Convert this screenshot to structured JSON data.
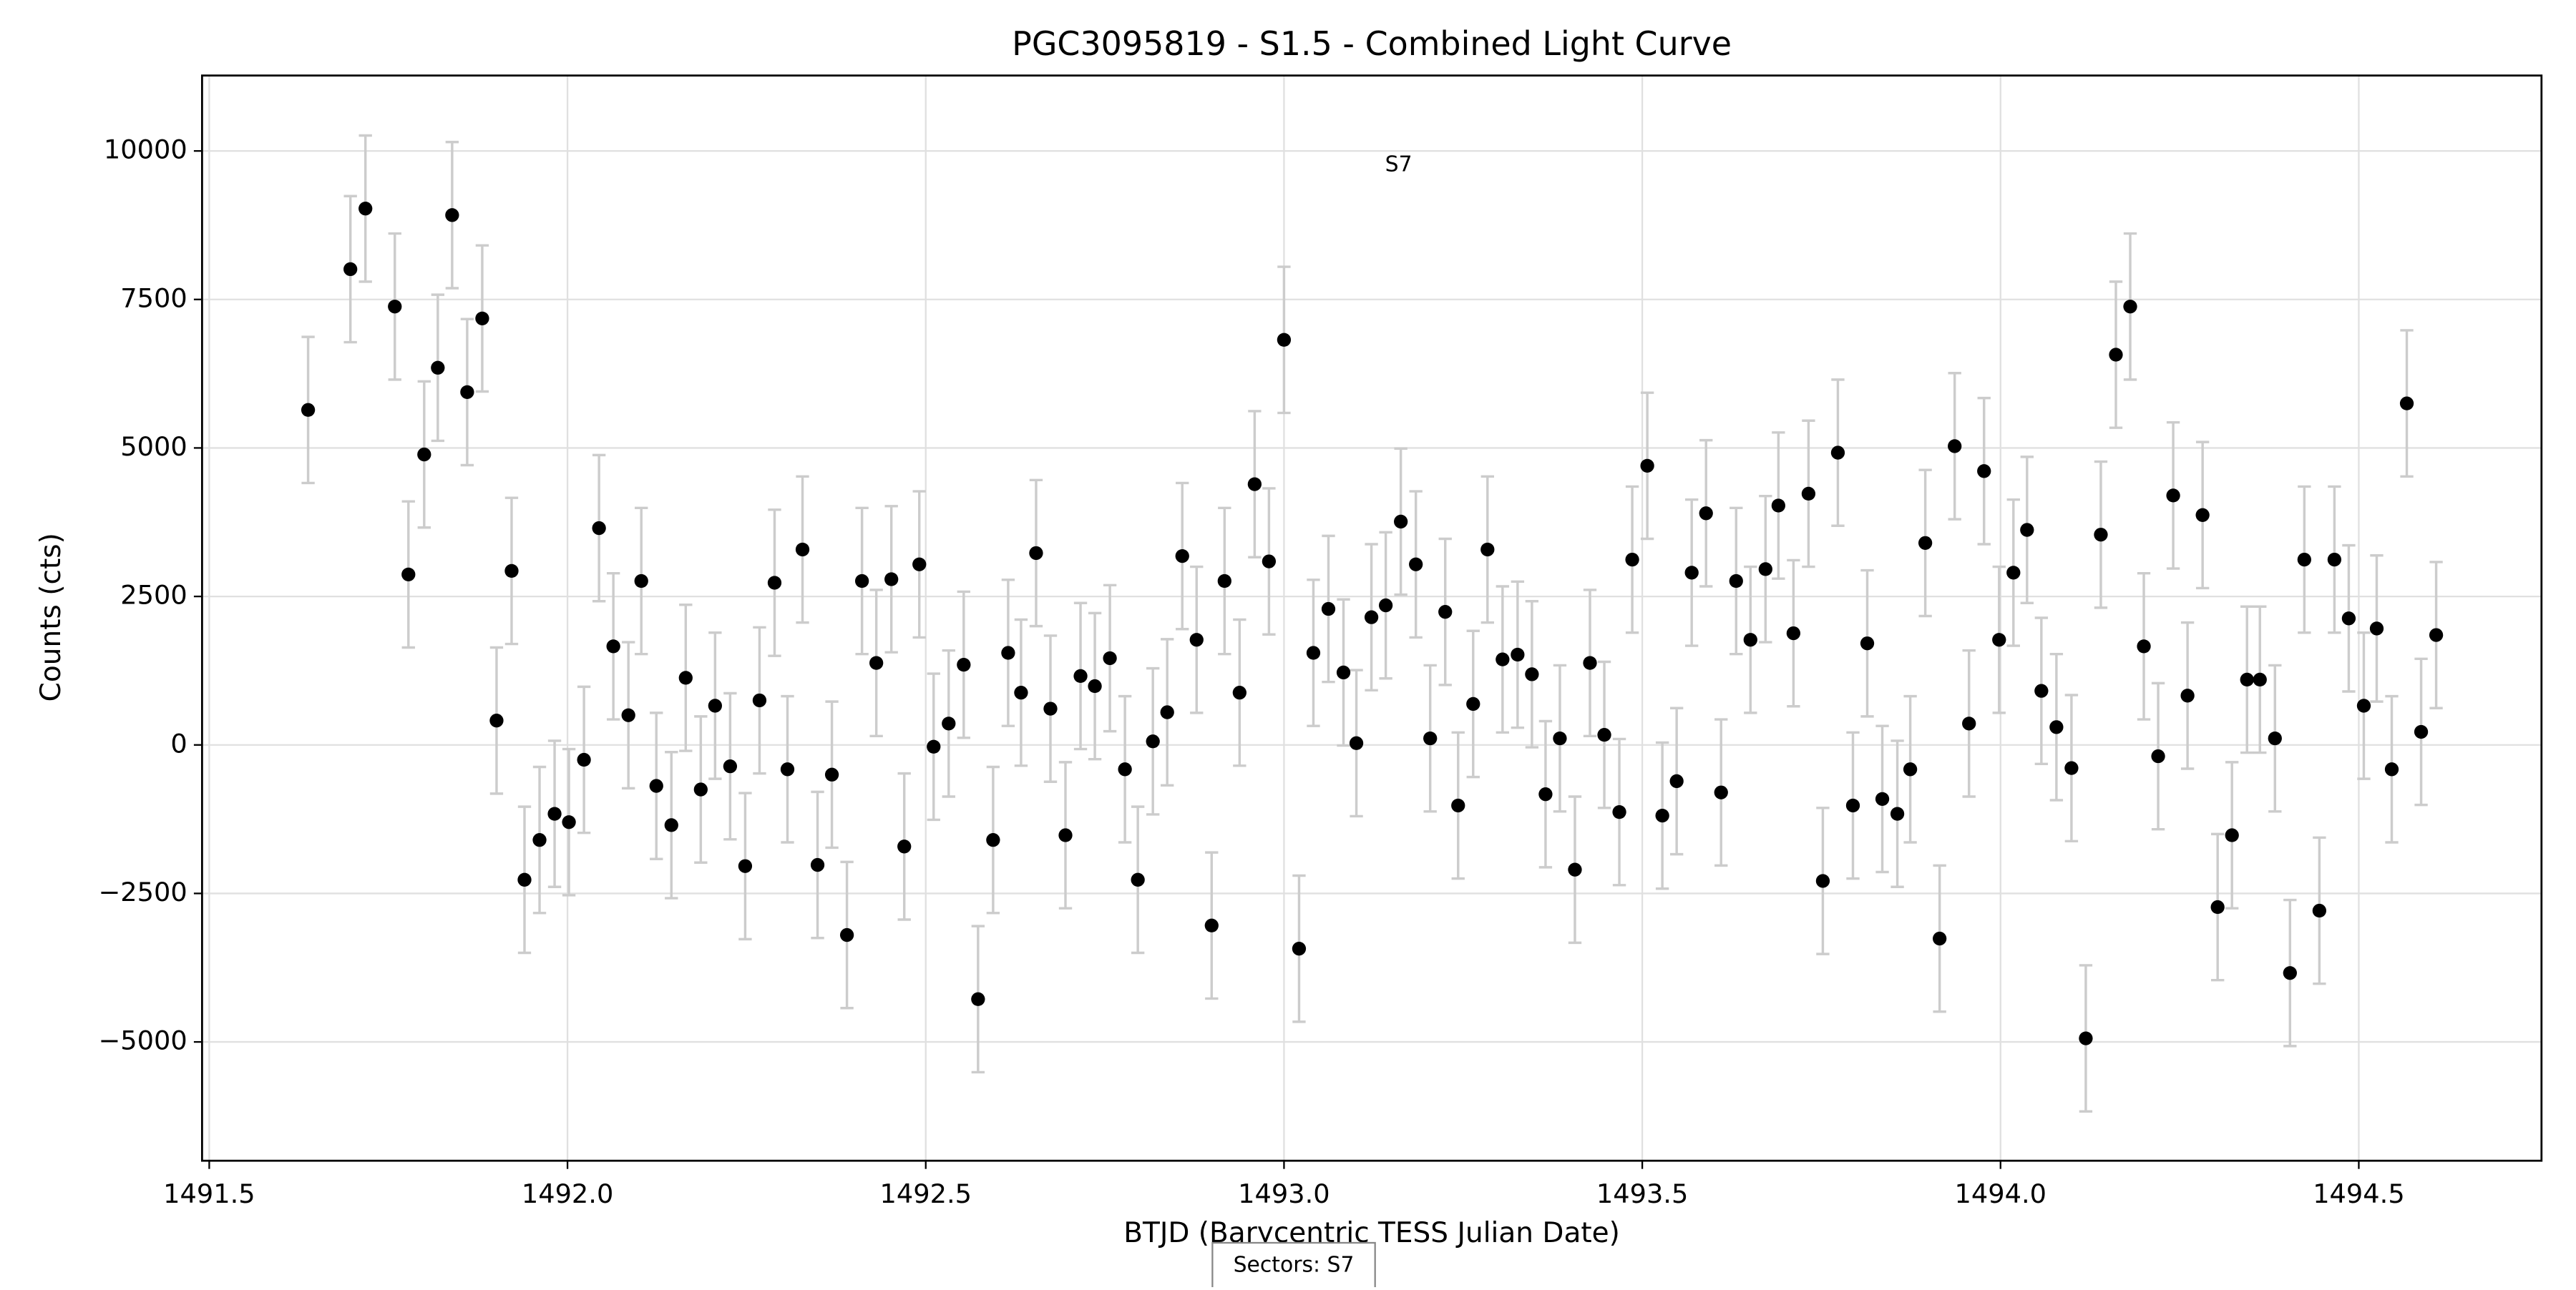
{
  "chart_data": {
    "type": "errorbar_scatter",
    "title": "PGC3095819 - S1.5 - Combined Light Curve",
    "xlabel": "BTJD (Barycentric TESS Julian Date)",
    "ylabel": "Counts (cts)",
    "annotation": {
      "text": "S7",
      "x": 1493.16,
      "y": 9760
    },
    "sectors_note": "Sectors: S7",
    "grid": true,
    "xlim": [
      1491.49,
      1494.755
    ],
    "ylim": [
      -7000,
      11270
    ],
    "xticks": [
      {
        "value": 1491.5,
        "label": "1491.5"
      },
      {
        "value": 1492.0,
        "label": "1492.0"
      },
      {
        "value": 1492.5,
        "label": "1492.5"
      },
      {
        "value": 1493.0,
        "label": "1493.0"
      },
      {
        "value": 1493.5,
        "label": "1493.5"
      },
      {
        "value": 1494.0,
        "label": "1494.0"
      },
      {
        "value": 1494.5,
        "label": "1494.5"
      }
    ],
    "yticks": [
      {
        "value": -5000,
        "label": "−5000"
      },
      {
        "value": -2500,
        "label": "−2500"
      },
      0,
      2500,
      5000,
      7500,
      10000
    ],
    "yerr": 1230,
    "error_color": "#cccccc",
    "series": [
      {
        "name": "S7",
        "color": "#000000",
        "x": [
          1491.638,
          1491.697,
          1491.718,
          1491.759,
          1491.778,
          1491.8,
          1491.819,
          1491.839,
          1491.86,
          1491.881,
          1491.901,
          1491.922,
          1491.94,
          1491.961,
          1491.982,
          1492.002,
          1492.023,
          1492.044,
          1492.064,
          1492.085,
          1492.103,
          1492.124,
          1492.145,
          1492.165,
          1492.186,
          1492.206,
          1492.227,
          1492.248,
          1492.268,
          1492.289,
          1492.307,
          1492.328,
          1492.349,
          1492.369,
          1492.39,
          1492.411,
          1492.431,
          1492.452,
          1492.47,
          1492.491,
          1492.511,
          1492.532,
          1492.553,
          1492.573,
          1492.594,
          1492.615,
          1492.633,
          1492.654,
          1492.674,
          1492.695,
          1492.716,
          1492.736,
          1492.757,
          1492.778,
          1492.796,
          1492.817,
          1492.837,
          1492.858,
          1492.878,
          1492.899,
          1492.917,
          1492.938,
          1492.959,
          1492.979,
          1493.0,
          1493.021,
          1493.041,
          1493.062,
          1493.083,
          1493.101,
          1493.122,
          1493.142,
          1493.163,
          1493.184,
          1493.204,
          1493.225,
          1493.243,
          1493.264,
          1493.284,
          1493.305,
          1493.326,
          1493.346,
          1493.365,
          1493.385,
          1493.406,
          1493.427,
          1493.447,
          1493.468,
          1493.486,
          1493.507,
          1493.528,
          1493.548,
          1493.569,
          1493.589,
          1493.61,
          1493.631,
          1493.651,
          1493.672,
          1493.69,
          1493.711,
          1493.732,
          1493.752,
          1493.773,
          1493.794,
          1493.814,
          1493.835,
          1493.856,
          1493.874,
          1493.895,
          1493.915,
          1493.936,
          1493.956,
          1493.977,
          1493.998,
          1494.018,
          1494.037,
          1494.057,
          1494.078,
          1494.099,
          1494.119,
          1494.14,
          1494.161,
          1494.181,
          1494.2,
          1494.22,
          1494.241,
          1494.261,
          1494.282,
          1494.303,
          1494.323,
          1494.344,
          1494.362,
          1494.383,
          1494.404,
          1494.424,
          1494.445,
          1494.466,
          1494.486,
          1494.507,
          1494.525,
          1494.546,
          1494.567,
          1494.587,
          1494.608
        ],
        "values": [
          5640,
          8010,
          9030,
          7380,
          2870,
          4890,
          6350,
          8920,
          5940,
          7180,
          410,
          2930,
          -2270,
          -1600,
          -1160,
          -1300,
          -250,
          3650,
          1660,
          500,
          2760,
          -690,
          -1350,
          1130,
          -750,
          660,
          -360,
          -2040,
          750,
          2730,
          -410,
          3290,
          -2020,
          -500,
          -3200,
          2760,
          1380,
          2790,
          -1710,
          3040,
          -30,
          360,
          1350,
          -4280,
          -1600,
          1550,
          880,
          3230,
          610,
          -1520,
          1160,
          990,
          1460,
          -410,
          -2270,
          60,
          550,
          3180,
          1770,
          -3040,
          2760,
          880,
          4390,
          3090,
          6820,
          -3430,
          1550,
          2290,
          1220,
          30,
          2150,
          2350,
          3760,
          3040,
          110,
          2240,
          -1020,
          690,
          3290,
          1440,
          1520,
          1190,
          -830,
          110,
          -2100,
          1380,
          170,
          -1130,
          3120,
          4700,
          -1190,
          -610,
          2900,
          3900,
          -800,
          2760,
          1770,
          2960,
          4030,
          1880,
          4230,
          -2290,
          4920,
          -1020,
          1710,
          -910,
          -1160,
          -410,
          3400,
          -3260,
          5030,
          360,
          4610,
          1770,
          2900,
          3620,
          910,
          300,
          -390,
          -4940,
          3540,
          6570,
          7380,
          1660,
          -190,
          4200,
          830,
          3870,
          -2730,
          -1520,
          1100,
          1100,
          110,
          -3840,
          3120,
          -2790,
          3120,
          2130,
          660,
          1960,
          -410,
          5750,
          220,
          1850
        ]
      }
    ]
  }
}
